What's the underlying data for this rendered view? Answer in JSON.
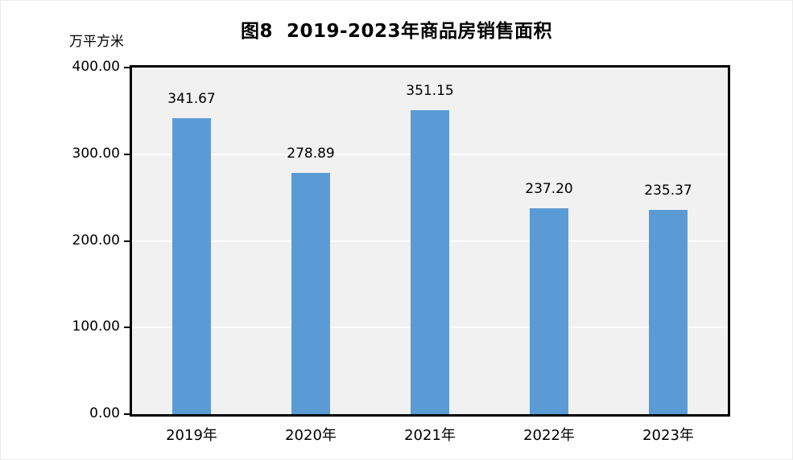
{
  "chart_data": {
    "type": "bar",
    "title": "图8  2019-2023年商品房销售面积",
    "unit_label": "万平方米",
    "categories": [
      "2019年",
      "2020年",
      "2021年",
      "2022年",
      "2023年"
    ],
    "values": [
      341.67,
      278.89,
      351.15,
      237.2,
      235.37
    ],
    "value_labels": [
      "341.67",
      "278.89",
      "351.15",
      "237.20",
      "235.37"
    ],
    "ylabel": "万平方米",
    "xlabel": "",
    "ylim": [
      0,
      400
    ],
    "y_ticks": [
      {
        "value": 400,
        "label": "400.00"
      },
      {
        "value": 300,
        "label": "300.00"
      },
      {
        "value": 200,
        "label": "200.00"
      },
      {
        "value": 100,
        "label": "100.00"
      },
      {
        "value": 0,
        "label": "0.00"
      }
    ],
    "gridlines_at": [
      300,
      200,
      100
    ],
    "grid": "horizontal",
    "legend": "none",
    "colors": {
      "bar": "#5b9bd5",
      "plot_background": "#f1f1f2",
      "gridline": "#ffffff",
      "axis_frame": "#000000",
      "text": "#000000",
      "page_background": "#ffffff"
    }
  }
}
